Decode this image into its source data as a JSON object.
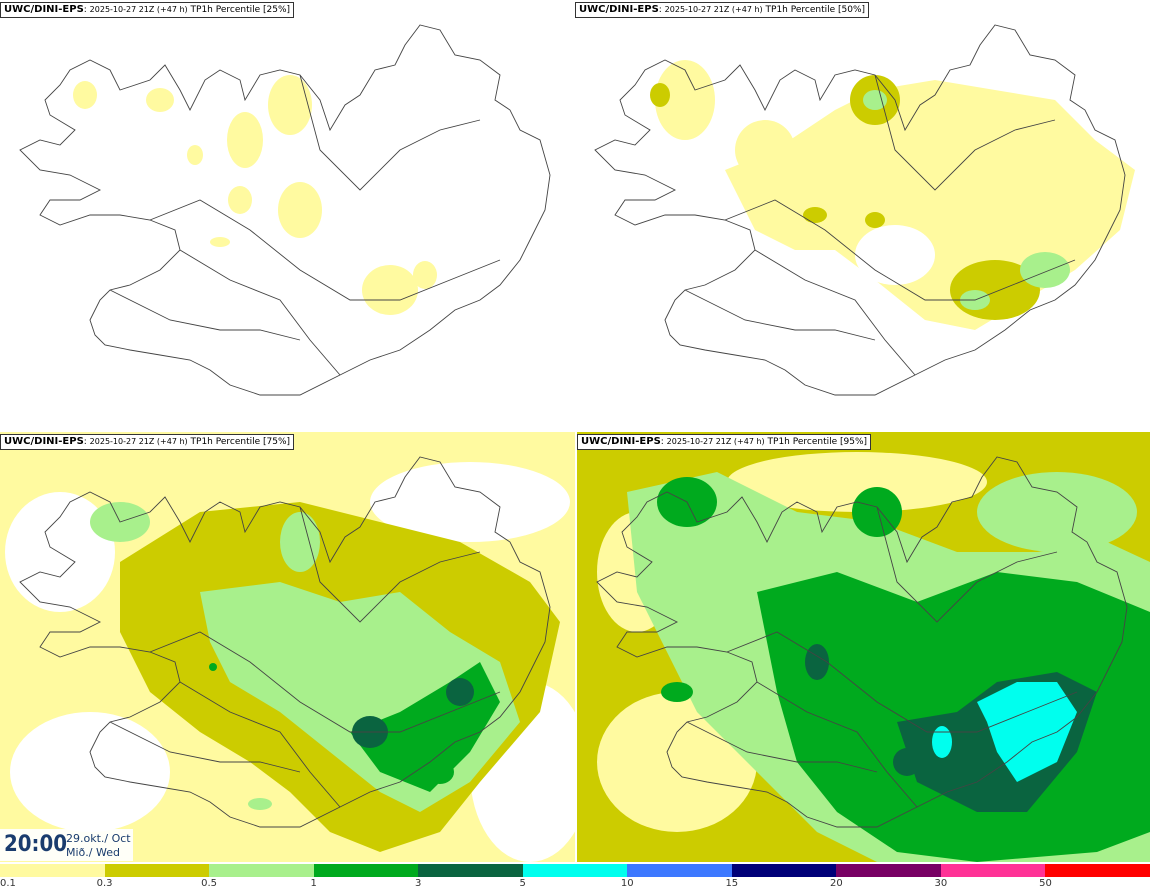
{
  "panels": [
    {
      "model": "UWC/DINI-EPS",
      "run": "2025-10-27 21Z (+47 h)",
      "field": "TP1h Percentile [25%]"
    },
    {
      "model": "UWC/DINI-EPS",
      "run": "2025-10-27 21Z (+47 h)",
      "field": "TP1h Percentile [50%]"
    },
    {
      "model": "UWC/DINI-EPS",
      "run": "2025-10-27 21Z (+47 h)",
      "field": "TP1h Percentile [75%]"
    },
    {
      "model": "UWC/DINI-EPS",
      "run": "2025-10-27 21Z (+47 h)",
      "field": "TP1h Percentile [95%]"
    }
  ],
  "time": {
    "hour": "20:00",
    "date": "29.okt./ Oct",
    "weekday": "Mið./ Wed"
  },
  "legend": {
    "labels": [
      "0.1",
      "0.3",
      "0.5",
      "1",
      "3",
      "5",
      "10",
      "15",
      "20",
      "30",
      "50"
    ],
    "colors": [
      "#fffaa0",
      "#cccc00",
      "#a8f08c",
      "#00aa1e",
      "#0a6440",
      "#00ffee",
      "#3c78ff",
      "#000078",
      "#780064",
      "#ff3296",
      "#ff0000"
    ]
  }
}
